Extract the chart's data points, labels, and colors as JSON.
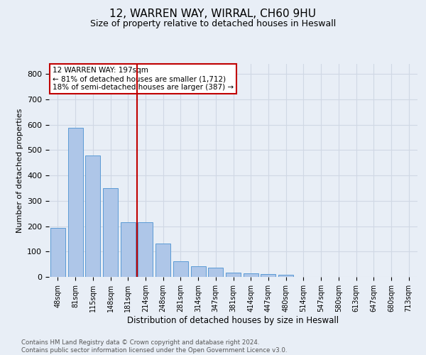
{
  "title1": "12, WARREN WAY, WIRRAL, CH60 9HU",
  "title2": "Size of property relative to detached houses in Heswall",
  "xlabel": "Distribution of detached houses by size in Heswall",
  "ylabel": "Number of detached properties",
  "categories": [
    "48sqm",
    "81sqm",
    "115sqm",
    "148sqm",
    "181sqm",
    "214sqm",
    "248sqm",
    "281sqm",
    "314sqm",
    "347sqm",
    "381sqm",
    "414sqm",
    "447sqm",
    "480sqm",
    "514sqm",
    "547sqm",
    "580sqm",
    "613sqm",
    "647sqm",
    "680sqm",
    "713sqm"
  ],
  "values": [
    193,
    588,
    480,
    351,
    216,
    216,
    131,
    62,
    43,
    36,
    18,
    15,
    11,
    8,
    0,
    0,
    0,
    0,
    0,
    0,
    0
  ],
  "bar_color": "#aec6e8",
  "bar_edge_color": "#5b9bd5",
  "grid_color": "#d0d8e4",
  "bg_color": "#e8eef6",
  "vline_color": "#c00000",
  "annotation_text": "12 WARREN WAY: 197sqm\n← 81% of detached houses are smaller (1,712)\n18% of semi-detached houses are larger (387) →",
  "annotation_box_color": "#ffffff",
  "annotation_box_edge": "#c00000",
  "footer1": "Contains HM Land Registry data © Crown copyright and database right 2024.",
  "footer2": "Contains public sector information licensed under the Open Government Licence v3.0.",
  "ylim": [
    0,
    840
  ],
  "yticks": [
    0,
    100,
    200,
    300,
    400,
    500,
    600,
    700,
    800
  ]
}
